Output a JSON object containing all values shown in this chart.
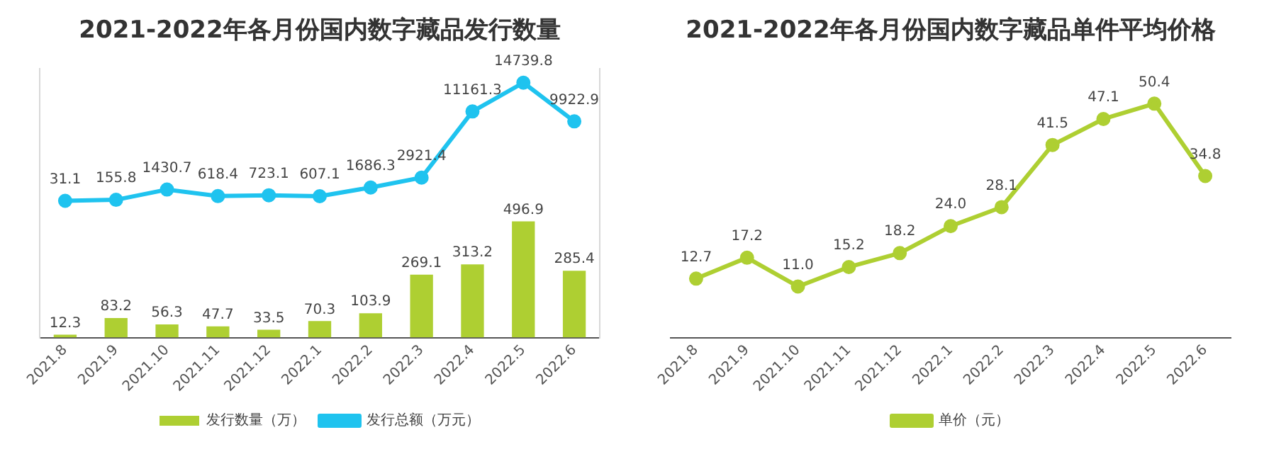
{
  "chart_data": [
    {
      "type": "bar",
      "title": "2021-2022年各月份国内数字藏品发行数量",
      "categories": [
        "2021.8",
        "2021.9",
        "2021.10",
        "2021.11",
        "2021.12",
        "2022.1",
        "2022.2",
        "2022.3",
        "2022.4",
        "2022.5",
        "2022.6"
      ],
      "series": [
        {
          "name": "发行数量（万）",
          "color": "#aecf32",
          "values": [
            12.3,
            83.2,
            56.3,
            47.7,
            33.5,
            70.3,
            103.9,
            269.1,
            313.2,
            496.9,
            285.4
          ],
          "value_labels": [
            "12.3",
            "83.2",
            "56.3",
            "47.7",
            "33.5",
            "70.3",
            "103.9",
            "269.1",
            "313.2",
            "496.9",
            "285.4"
          ]
        },
        {
          "name": "发行总额（万元）",
          "type": "line",
          "axis": "y2",
          "color": "#1fc3ef",
          "values": [
            31.1,
            155.8,
            1430.7,
            618.4,
            723.1,
            607.1,
            1686.3,
            2921.4,
            11161.3,
            14739.8,
            9922.9
          ],
          "value_labels": [
            "31.1",
            "155.8",
            "1430.7",
            "618.4",
            "723.1",
            "607.1",
            "1686.3",
            "2921.4",
            "11161.3",
            "14739.8",
            "9922.9"
          ]
        }
      ],
      "ylim": [
        0,
        1150
      ],
      "y2lim": [
        -17000,
        16500
      ],
      "legend": "bottom",
      "marker": "circle",
      "tick_labels": "x",
      "grid": false
    },
    {
      "type": "line",
      "title": "2021-2022年各月份国内数字藏品单件平均价格",
      "categories": [
        "2021.8",
        "2021.9",
        "2021.10",
        "2021.11",
        "2021.12",
        "2022.1",
        "2022.2",
        "2022.3",
        "2022.4",
        "2022.5",
        "2022.6"
      ],
      "series": [
        {
          "name": "单价（元）",
          "color": "#aecf32",
          "values": [
            12.7,
            17.2,
            11.0,
            15.2,
            18.2,
            24.0,
            28.1,
            41.5,
            47.1,
            50.4,
            34.8
          ],
          "value_labels": [
            "12.7",
            "17.2",
            "11.0",
            "15.2",
            "18.2",
            "24.0",
            "28.1",
            "41.5",
            "47.1",
            "50.4",
            "34.8"
          ]
        }
      ],
      "legend": "bottom",
      "marker": "circle",
      "tick_labels": "x",
      "grid": false
    }
  ]
}
